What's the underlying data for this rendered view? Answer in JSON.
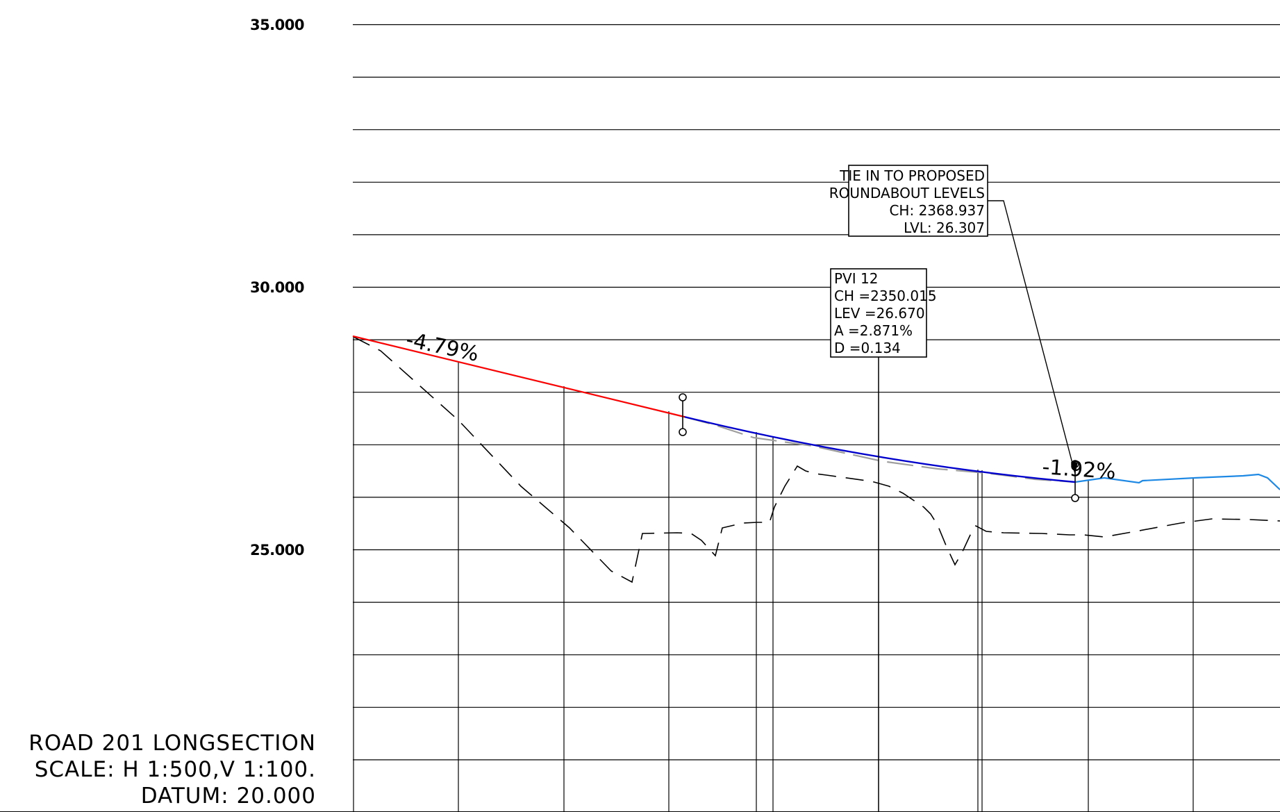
{
  "title_block": {
    "line1": "ROAD 201 LONGSECTION",
    "line2": "SCALE: H 1:500,V 1:100.",
    "line3": "DATUM: 20.000"
  },
  "axis": {
    "levels_labeled": [
      "35.000",
      "30.000",
      "25.000"
    ],
    "grid_interval": 1,
    "level_range": [
      19.0,
      35.0
    ]
  },
  "grades": {
    "left": "-4.79%",
    "right": "-1.92%"
  },
  "pvi_box": {
    "line1": "PVI 12",
    "line2": "CH =2350.015",
    "line3": "LEV =26.670",
    "line4": "A =2.871%",
    "line5": "D =0.134"
  },
  "tie_in_box": {
    "line1": "TIE IN TO PROPOSED",
    "line2": "ROUNDABOUT LEVELS",
    "line3": "CH: 2368.937",
    "line4": "LVL: 26.307"
  },
  "colors": {
    "grid": "#000000",
    "design_grade": "#ff0000",
    "vertical_curve": "#0000cc",
    "roundabout_profile": "#1e88e5",
    "existing_ground": "#000000",
    "superseded_profile": "#9e9e9e"
  }
}
